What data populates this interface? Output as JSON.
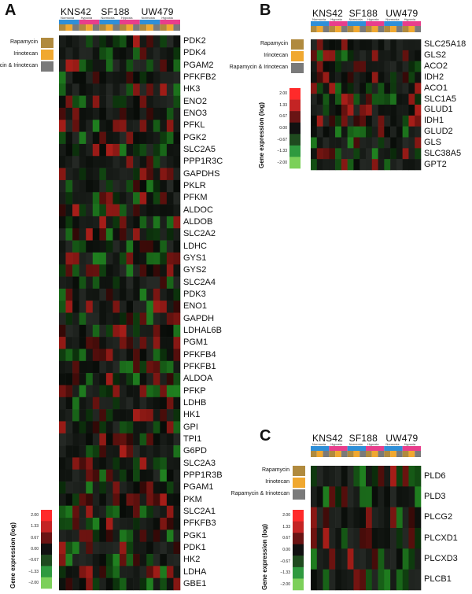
{
  "panels": {
    "A": {
      "letter": "A",
      "cell_lines": [
        "KNS42",
        "SF188",
        "UW479"
      ],
      "conditions": [
        "Normoxia",
        "Hypoxia",
        "Normoxia",
        "Hypoxia",
        "Normoxia",
        "Hypoxia"
      ],
      "genes": [
        "PDK2",
        "PDK4",
        "PGAM2",
        "PFKFB2",
        "HK3",
        "ENO2",
        "ENO3",
        "PFKL",
        "PGK2",
        "SLC2A5",
        "PPP1R3C",
        "GAPDHS",
        "PKLR",
        "PFKM",
        "ALDOC",
        "ALDOB",
        "SLC2A2",
        "LDHC",
        "GYS1",
        "GYS2",
        "SLC2A4",
        "PDK3",
        "ENO1",
        "GAPDH",
        "LDHAL6B",
        "PGM1",
        "PFKFB4",
        "PFKFB1",
        "ALDOA",
        "PFKP",
        "LDHB",
        "HK1",
        "GPI",
        "TPI1",
        "G6PD",
        "SLC2A3",
        "PPP1R3B",
        "PGAM1",
        "PKM",
        "SLC2A1",
        "PFKFB3",
        "PGK1",
        "PDK1",
        "HK2",
        "LDHA",
        "GBE1"
      ]
    },
    "B": {
      "letter": "B",
      "cell_lines": [
        "KNS42",
        "SF188",
        "UW479"
      ],
      "conditions": [
        "Normoxia",
        "Hypoxia",
        "Normoxia",
        "Hypoxia",
        "Normoxia",
        "Hypoxia"
      ],
      "genes": [
        "SLC25A18",
        "GLS2",
        "ACO2",
        "IDH2",
        "ACO1",
        "SLC1A5",
        "GLUD1",
        "IDH1",
        "GLUD2",
        "GLS",
        "SLC38A5",
        "GPT2"
      ]
    },
    "C": {
      "letter": "C",
      "cell_lines": [
        "KNS42",
        "SF188",
        "UW479"
      ],
      "conditions": [
        "Normoxia",
        "Hypoxia",
        "Normoxia",
        "Hypoxia",
        "Normoxia",
        "Hypoxia"
      ],
      "genes": [
        "PLD6",
        "PLD3",
        "PLCG2",
        "PLCXD1",
        "PLCXD3",
        "PLCB1"
      ]
    }
  },
  "treatment_legend": [
    "Rapamycin",
    "Irinotecan",
    "Rapamycin & Irinotecan"
  ],
  "treatment_colors": [
    "#b08a3e",
    "#f0a830",
    "#7a7a7a"
  ],
  "condition_colors": {
    "Normoxia": "#2f8fd8",
    "Hypoxia": "#e83e8c"
  },
  "color_key": {
    "title": "Gene expression (log)",
    "ticks": [
      "2.00",
      "1.33",
      "0.67",
      "0.00",
      "−0.67",
      "−1.33",
      "−2.00"
    ],
    "colors": [
      "#ff2a2a",
      "#c42424",
      "#6a1414",
      "#111111",
      "#1f4a1f",
      "#2f9a3f",
      "#7cd05a"
    ]
  }
}
